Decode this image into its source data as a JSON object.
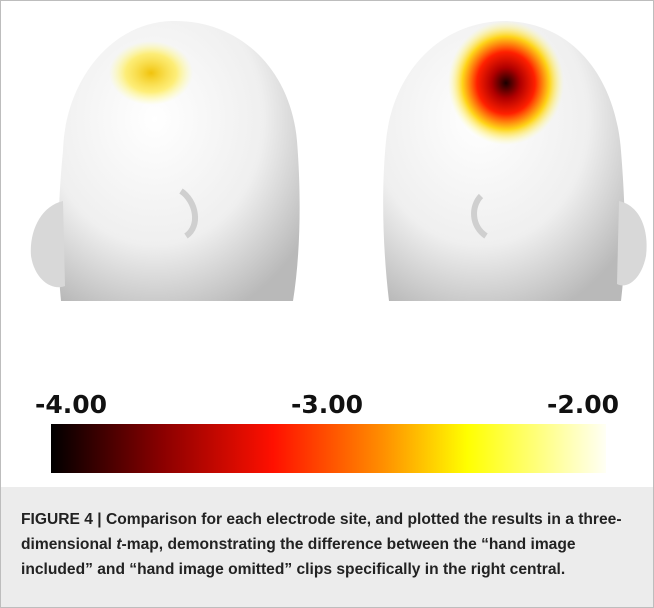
{
  "colorbar": {
    "lim": [
      -4,
      -2
    ],
    "ticks": [
      {
        "value": -4,
        "label": "-4.00"
      },
      {
        "value": -3,
        "label": "-3.00"
      },
      {
        "value": -2,
        "label": "-2.00"
      }
    ]
  },
  "caption": {
    "label": "FIGURE 4 |",
    "text_before": "Comparison for each electrode site, and plotted the results in a three-dimensional ",
    "italic": "t",
    "text_after": "-map, demonstrating the difference between the “hand image included” and “hand image omitted” clips specifically in the right central."
  }
}
